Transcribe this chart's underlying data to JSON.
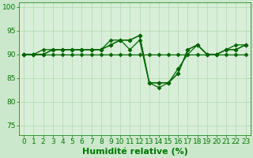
{
  "x": [
    0,
    1,
    2,
    3,
    4,
    5,
    6,
    7,
    8,
    9,
    10,
    11,
    12,
    13,
    14,
    15,
    16,
    17,
    18,
    19,
    20,
    21,
    22,
    23
  ],
  "series": [
    [
      90,
      90,
      90,
      90,
      90,
      90,
      90,
      90,
      90,
      90,
      90,
      90,
      90,
      90,
      90,
      90,
      90,
      90,
      90,
      90,
      90,
      90,
      90,
      90
    ],
    [
      90,
      90,
      90,
      91,
      91,
      91,
      91,
      91,
      91,
      92,
      93,
      93,
      94,
      84,
      84,
      84,
      86,
      91,
      92,
      90,
      90,
      91,
      91,
      92
    ],
    [
      90,
      90,
      90,
      91,
      91,
      91,
      91,
      91,
      91,
      92,
      93,
      91,
      93,
      84,
      84,
      84,
      86,
      91,
      92,
      90,
      90,
      91,
      91,
      92
    ],
    [
      90,
      90,
      91,
      91,
      91,
      91,
      91,
      91,
      91,
      93,
      93,
      93,
      94,
      84,
      83,
      84,
      87,
      90,
      92,
      90,
      90,
      91,
      92,
      92
    ]
  ],
  "xlabel": "Humidité relative (%)",
  "xlabel_fontsize": 8,
  "xlim": [
    -0.5,
    23.5
  ],
  "ylim": [
    73,
    101
  ],
  "yticks": [
    75,
    80,
    85,
    90,
    95,
    100
  ],
  "xticks": [
    0,
    1,
    2,
    3,
    4,
    5,
    6,
    7,
    8,
    9,
    10,
    11,
    12,
    13,
    14,
    15,
    16,
    17,
    18,
    19,
    20,
    21,
    22,
    23
  ],
  "grid_color": "#b0d8b0",
  "bg_color": "#cce8cc",
  "plot_bg_color": "#d8eed8",
  "line_color": "#006600",
  "tick_color": "#007700",
  "tick_fontsize": 6.5,
  "marker": "D",
  "marker_size": 2.5
}
